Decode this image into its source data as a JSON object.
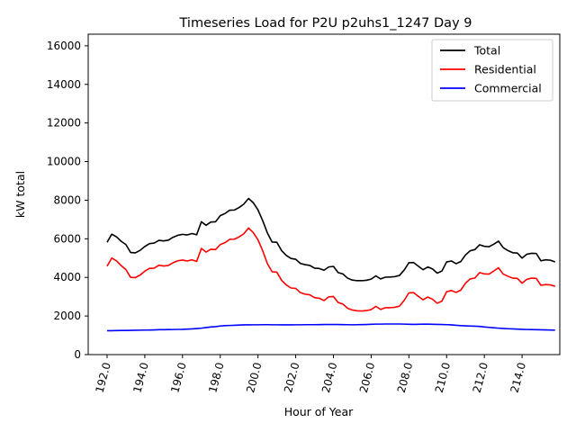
{
  "chart_data": {
    "type": "line",
    "title": "Timeseries Load for P2U p2uhs1_1247  Day 9",
    "xlabel": "Hour of Year",
    "ylabel": "kW total",
    "xlim": [
      191.0,
      216.0
    ],
    "ylim": [
      0,
      16600
    ],
    "xticks": [
      192,
      194,
      196,
      198,
      200,
      202,
      204,
      206,
      208,
      210,
      212,
      214
    ],
    "xtick_labels": [
      "192.0",
      "194.0",
      "196.0",
      "198.0",
      "200.0",
      "202.0",
      "204.0",
      "206.0",
      "208.0",
      "210.0",
      "212.0",
      "214.0"
    ],
    "yticks": [
      0,
      2000,
      4000,
      6000,
      8000,
      10000,
      12000,
      14000,
      16000
    ],
    "ytick_labels": [
      "0",
      "2000",
      "4000",
      "6000",
      "8000",
      "10000",
      "12000",
      "14000",
      "16000"
    ],
    "legend_position": "top-right",
    "x_start": 192.0,
    "x_step": 0.25,
    "series": [
      {
        "name": "Total",
        "color": "#000000",
        "values": [
          5820,
          6240,
          6100,
          5870,
          5700,
          5290,
          5270,
          5400,
          5600,
          5750,
          5780,
          5920,
          5890,
          5930,
          6080,
          6180,
          6230,
          6200,
          6270,
          6210,
          6880,
          6700,
          6870,
          6880,
          7200,
          7310,
          7480,
          7490,
          7620,
          7800,
          8090,
          7870,
          7500,
          6940,
          6300,
          5830,
          5820,
          5390,
          5140,
          4980,
          4940,
          4720,
          4660,
          4620,
          4480,
          4460,
          4370,
          4540,
          4570,
          4250,
          4180,
          3960,
          3860,
          3830,
          3830,
          3850,
          3910,
          4080,
          3920,
          4010,
          4020,
          4040,
          4100,
          4380,
          4760,
          4770,
          4580,
          4400,
          4540,
          4440,
          4220,
          4330,
          4800,
          4850,
          4710,
          4820,
          5160,
          5380,
          5440,
          5690,
          5610,
          5590,
          5720,
          5880,
          5540,
          5390,
          5280,
          5260,
          5000,
          5200,
          5250,
          5240,
          4860,
          4910,
          4890,
          4800
        ]
      },
      {
        "name": "Residential",
        "color": "#ff0000",
        "values": [
          4580,
          5000,
          4860,
          4610,
          4400,
          4000,
          3990,
          4120,
          4320,
          4470,
          4480,
          4630,
          4590,
          4620,
          4760,
          4860,
          4900,
          4850,
          4910,
          4830,
          5500,
          5310,
          5460,
          5440,
          5700,
          5800,
          5970,
          5980,
          6100,
          6260,
          6560,
          6320,
          5950,
          5380,
          4710,
          4290,
          4270,
          3850,
          3610,
          3450,
          3430,
          3210,
          3130,
          3100,
          2950,
          2920,
          2800,
          2990,
          3010,
          2700,
          2620,
          2400,
          2310,
          2270,
          2260,
          2280,
          2330,
          2500,
          2340,
          2430,
          2430,
          2450,
          2510,
          2810,
          3200,
          3210,
          3020,
          2840,
          2980,
          2870,
          2660,
          2770,
          3260,
          3320,
          3220,
          3340,
          3700,
          3920,
          3970,
          4250,
          4180,
          4170,
          4330,
          4500,
          4170,
          4060,
          3960,
          3950,
          3700,
          3900,
          3960,
          3950,
          3590,
          3630,
          3610,
          3540
        ]
      },
      {
        "name": "Commercial",
        "color": "#0000ff",
        "values": [
          1240,
          1240,
          1245,
          1250,
          1250,
          1255,
          1260,
          1265,
          1270,
          1275,
          1280,
          1290,
          1290,
          1295,
          1300,
          1305,
          1310,
          1320,
          1330,
          1350,
          1370,
          1400,
          1430,
          1450,
          1480,
          1500,
          1510,
          1520,
          1530,
          1540,
          1540,
          1545,
          1545,
          1550,
          1550,
          1545,
          1545,
          1540,
          1540,
          1540,
          1545,
          1545,
          1550,
          1550,
          1550,
          1555,
          1560,
          1560,
          1560,
          1560,
          1555,
          1550,
          1545,
          1550,
          1555,
          1560,
          1570,
          1580,
          1580,
          1585,
          1585,
          1585,
          1585,
          1580,
          1570,
          1565,
          1570,
          1580,
          1575,
          1570,
          1565,
          1560,
          1550,
          1540,
          1520,
          1500,
          1490,
          1480,
          1470,
          1460,
          1430,
          1410,
          1390,
          1370,
          1355,
          1340,
          1330,
          1320,
          1310,
          1300,
          1295,
          1290,
          1285,
          1280,
          1275,
          1265
        ]
      }
    ]
  }
}
